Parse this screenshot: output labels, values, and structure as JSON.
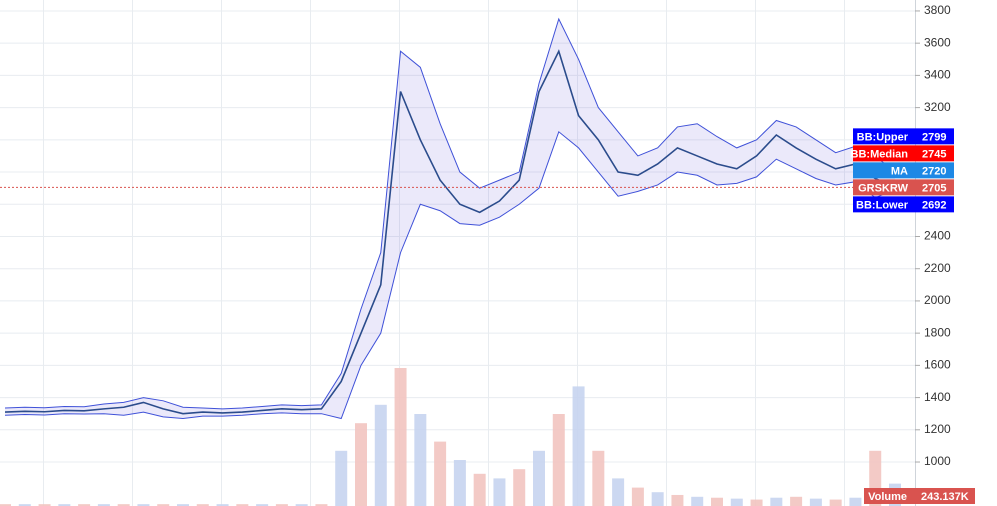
{
  "chart_data": {
    "type": "line",
    "categories": [
      null,
      null,
      null,
      null,
      null,
      null,
      null,
      null,
      null,
      null,
      null,
      null,
      null,
      null,
      null,
      null,
      null,
      null,
      null,
      null,
      null,
      null,
      null,
      null,
      null,
      null,
      null,
      null,
      null,
      null,
      null,
      null,
      null,
      null,
      null,
      null,
      null,
      null,
      null,
      null,
      null,
      null,
      null,
      null,
      null,
      null
    ],
    "ylim": [
      727,
      3868
    ],
    "yticks": [
      1000,
      1200,
      1400,
      1600,
      1800,
      2000,
      2200,
      2400,
      2600,
      2800,
      3000,
      3200,
      3400,
      3600,
      3800
    ],
    "y2lim": [
      0,
      5500000
    ],
    "grid": true,
    "series": [
      {
        "name": "GRSKRW",
        "color": "#2b4c8c",
        "values": [
          1310,
          1315,
          1312,
          1320,
          1318,
          1330,
          1340,
          1370,
          1330,
          1300,
          1310,
          1305,
          1310,
          1320,
          1330,
          1325,
          1330,
          1500,
          1800,
          2100,
          3300,
          3000,
          2750,
          2600,
          2550,
          2620,
          2750,
          3300,
          3550,
          3150,
          3000,
          2800,
          2780,
          2850,
          2950,
          2900,
          2850,
          2820,
          2900,
          3030,
          2950,
          2880,
          2820,
          2850,
          2760,
          2705
        ]
      },
      {
        "name": "BB:Upper",
        "color": "#3f51d8",
        "values": [
          1335,
          1340,
          1337,
          1345,
          1343,
          1360,
          1370,
          1400,
          1380,
          1340,
          1335,
          1330,
          1335,
          1345,
          1355,
          1350,
          1355,
          1550,
          1950,
          2300,
          3550,
          3450,
          3100,
          2800,
          2700,
          2750,
          2800,
          3350,
          3750,
          3500,
          3200,
          3050,
          2900,
          2950,
          3080,
          3100,
          3020,
          2950,
          3000,
          3120,
          3080,
          3000,
          2920,
          2960,
          2900,
          2799
        ]
      },
      {
        "name": "BB:Lower",
        "color": "#3f51d8",
        "values": [
          1290,
          1295,
          1292,
          1300,
          1298,
          1300,
          1290,
          1310,
          1280,
          1270,
          1285,
          1285,
          1290,
          1300,
          1305,
          1300,
          1300,
          1270,
          1600,
          1800,
          2300,
          2600,
          2560,
          2480,
          2470,
          2520,
          2600,
          2700,
          3050,
          2950,
          2800,
          2650,
          2680,
          2720,
          2800,
          2780,
          2720,
          2730,
          2770,
          2880,
          2820,
          2760,
          2720,
          2740,
          2640,
          2692
        ]
      },
      {
        "name": "Volume",
        "axis": "y2",
        "values": [
          20000,
          20000,
          20000,
          20000,
          20000,
          20000,
          20000,
          20000,
          20000,
          20000,
          20000,
          20000,
          20000,
          20000,
          20000,
          20000,
          20000,
          600000,
          900000,
          1100000,
          1500000,
          1000000,
          700000,
          500000,
          350000,
          300000,
          400000,
          600000,
          1000000,
          1300000,
          600000,
          300000,
          200000,
          150000,
          120000,
          100000,
          90000,
          80000,
          70000,
          90000,
          100000,
          80000,
          70000,
          90000,
          600000,
          243137
        ],
        "last_label": "243.137K"
      }
    ],
    "indicator_labels": [
      {
        "name": "BB:Upper",
        "value": 2799,
        "color": "#0000ff"
      },
      {
        "name": "BB:Median",
        "value": 2745,
        "color": "#ff0000"
      },
      {
        "name": "MA",
        "value": 2720,
        "color": "#1e88e5"
      },
      {
        "name": "GRSKRW",
        "value": 2705,
        "color": "#d9534f"
      },
      {
        "name": "BB:Lower",
        "value": 2692,
        "color": "#0000ff"
      }
    ]
  }
}
